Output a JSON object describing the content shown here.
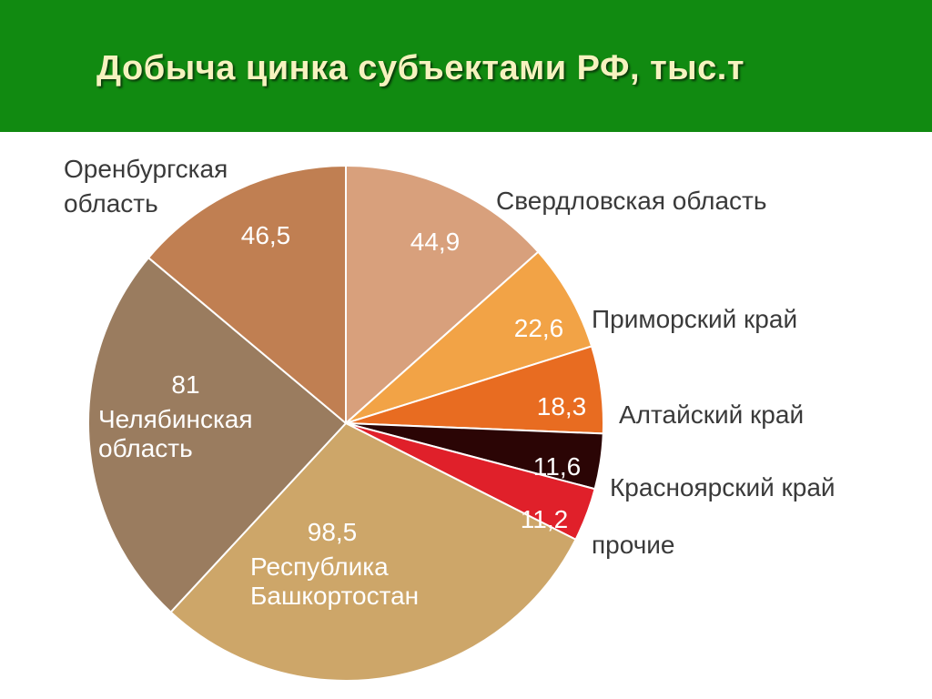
{
  "slide": {
    "title": "Добыча цинка субъектами РФ, тыс.т",
    "header_color": "#118a11",
    "title_color": "#f6f2bf"
  },
  "chart_data": {
    "type": "pie",
    "title": "Добыча цинка субъектами РФ, тыс.т",
    "start_direction": "top (12 o'clock), clockwise",
    "slices": [
      {
        "name": "Свердловская область",
        "label_lines": [
          "Свердловская область"
        ],
        "value_label": "44,9",
        "value": 44.9,
        "color": "#d8a07c",
        "value_text_color": "#2b2b2b"
      },
      {
        "name": "Приморский край",
        "label_lines": [
          "Приморский край"
        ],
        "value_label": "22,6",
        "value": 22.6,
        "color": "#f2a346",
        "value_text_color": "#ffffff"
      },
      {
        "name": "Алтайский край",
        "label_lines": [
          "Алтайский край"
        ],
        "value_label": "18,3",
        "value": 18.3,
        "color": "#e86c21",
        "value_text_color": "#ffffff"
      },
      {
        "name": "Красноярский край",
        "label_lines": [
          "Красноярский край"
        ],
        "value_label": "11,6",
        "value": 11.6,
        "color": "#2b0505",
        "value_text_color": "#ffffff"
      },
      {
        "name": "прочие",
        "label_lines": [
          "прочие"
        ],
        "value_label": "11,2",
        "value": 11.2,
        "color": "#e0202a",
        "value_text_color": "#ffffff"
      },
      {
        "name": "Республика Башкортостан",
        "label_lines": [
          "Республика",
          "Башкортостан"
        ],
        "value_label": "98,5",
        "value": 98.5,
        "color": "#cda669",
        "value_text_color": "#ffffff"
      },
      {
        "name": "Челябинская область",
        "label_lines": [
          "Челябинская",
          "область"
        ],
        "value_label": "81",
        "value": 81,
        "color": "#9a7c5f",
        "value_text_color": "#ffffff"
      },
      {
        "name": "Оренбургская область",
        "label_lines": [
          "Оренбургская",
          "область"
        ],
        "value_label": "46,5",
        "value": 46.5,
        "color": "#c07f52",
        "value_text_color": "#ffffff"
      }
    ]
  }
}
